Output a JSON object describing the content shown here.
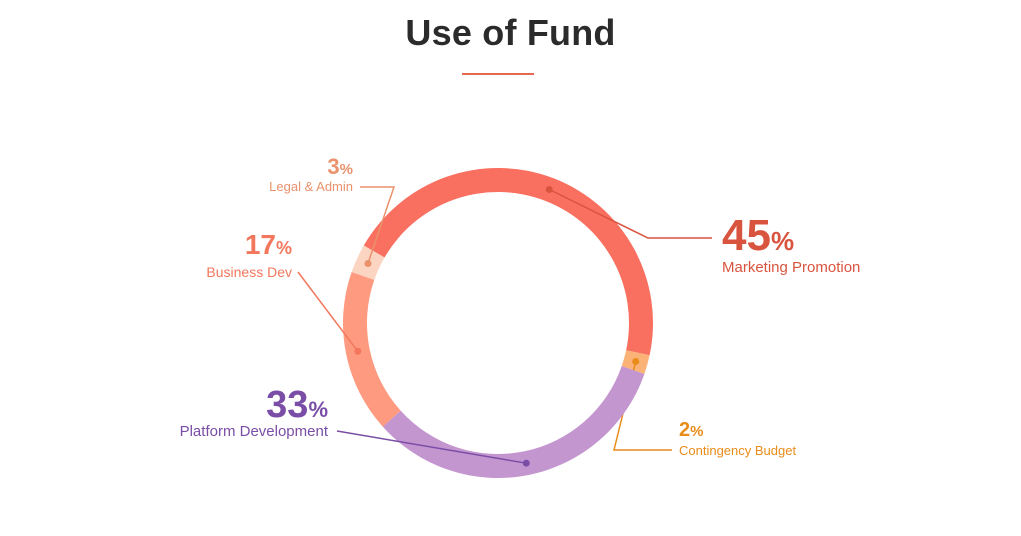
{
  "title": "Use of Fund",
  "colors": {
    "title": "#2b2b2b",
    "underline": "#e4694f"
  },
  "chart_data": {
    "type": "pie",
    "style": "donut",
    "title": "Use of Fund",
    "slices": [
      {
        "label": "Marketing Promotion",
        "value": 45,
        "value_text": "45",
        "unit": "%",
        "color": "#f97060",
        "text_color": "#d9543f"
      },
      {
        "label": "Contingency Budget",
        "value": 2,
        "value_text": "2",
        "unit": "%",
        "color": "#fbb277",
        "text_color": "#e98c1a"
      },
      {
        "label": "Platform Development",
        "value": 33,
        "value_text": "33",
        "unit": "%",
        "color": "#c496d0",
        "text_color": "#7a4ea6"
      },
      {
        "label": "Business Dev",
        "value": 17,
        "value_text": "17",
        "unit": "%",
        "color": "#fd9a80",
        "text_color": "#f3775c"
      },
      {
        "label": "Legal & Admin",
        "value": 3,
        "value_text": "3",
        "unit": "%",
        "color": "#fcd5c2",
        "text_color": "#e9926c"
      }
    ]
  }
}
